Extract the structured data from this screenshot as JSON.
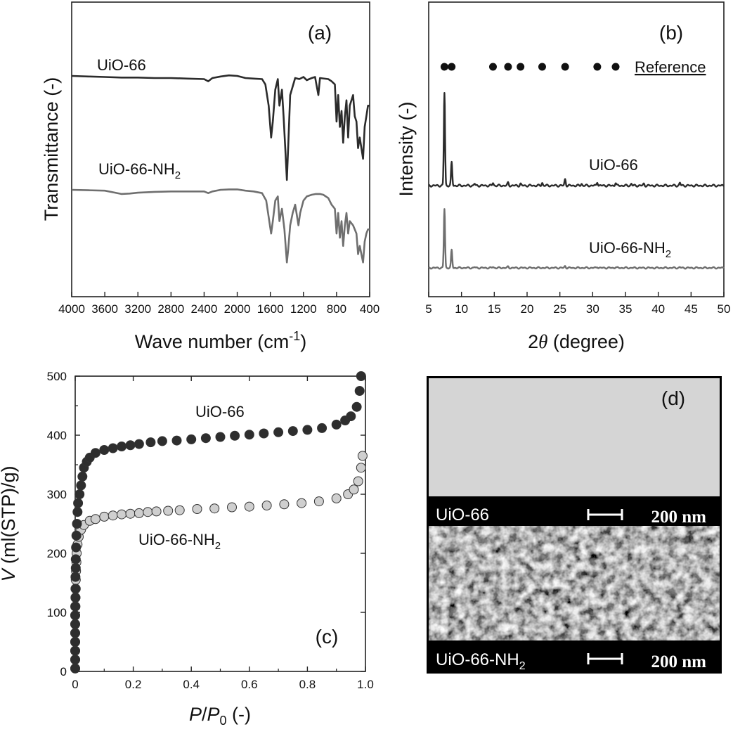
{
  "colors": {
    "dark": "#2b2b2b",
    "gray": "#6f6f6f",
    "light_marker": "#cfcfcf",
    "sem_bg": "#000000"
  },
  "chart_data": [
    {
      "id": "a",
      "type": "line",
      "panel_label": "(a)",
      "xlabel": "Wave number (cm",
      "xlabel_sup": "-1",
      "xlabel_tail": ")",
      "ylabel": "Transmittance (-)",
      "xlim": [
        4000,
        400
      ],
      "xticks": [
        "4000",
        "3600",
        "3200",
        "2800",
        "2400",
        "2000",
        "1600",
        "1200",
        "800",
        "400"
      ],
      "series": [
        {
          "name": "UiO-66",
          "sub": "",
          "color": "#2b2b2b",
          "offset": 0,
          "points": [
            [
              4000,
              0.98
            ],
            [
              3800,
              0.975
            ],
            [
              3600,
              0.97
            ],
            [
              3400,
              0.965
            ],
            [
              3200,
              0.965
            ],
            [
              3000,
              0.96
            ],
            [
              2800,
              0.96
            ],
            [
              2600,
              0.955
            ],
            [
              2400,
              0.95
            ],
            [
              2350,
              0.93
            ],
            [
              2300,
              0.96
            ],
            [
              2200,
              0.975
            ],
            [
              2100,
              0.985
            ],
            [
              2000,
              0.98
            ],
            [
              1900,
              0.96
            ],
            [
              1800,
              0.955
            ],
            [
              1700,
              0.95
            ],
            [
              1660,
              0.9
            ],
            [
              1620,
              0.7
            ],
            [
              1590,
              0.4
            ],
            [
              1570,
              0.55
            ],
            [
              1540,
              0.85
            ],
            [
              1510,
              0.95
            ],
            [
              1490,
              0.7
            ],
            [
              1460,
              0.85
            ],
            [
              1440,
              0.6
            ],
            [
              1420,
              0.3
            ],
            [
              1400,
              0.0
            ],
            [
              1385,
              0.3
            ],
            [
              1360,
              0.8
            ],
            [
              1300,
              0.96
            ],
            [
              1250,
              0.95
            ],
            [
              1200,
              0.97
            ],
            [
              1160,
              0.94
            ],
            [
              1100,
              0.96
            ],
            [
              1060,
              0.97
            ],
            [
              1020,
              0.8
            ],
            [
              1000,
              0.96
            ],
            [
              900,
              0.95
            ],
            [
              860,
              0.93
            ],
            [
              820,
              0.9
            ],
            [
              800,
              0.55
            ],
            [
              780,
              0.8
            ],
            [
              760,
              0.5
            ],
            [
              740,
              0.65
            ],
            [
              720,
              0.35
            ],
            [
              700,
              0.6
            ],
            [
              680,
              0.75
            ],
            [
              660,
              0.4
            ],
            [
              640,
              0.7
            ],
            [
              600,
              0.8
            ],
            [
              580,
              0.6
            ],
            [
              560,
              0.55
            ],
            [
              540,
              0.3
            ],
            [
              520,
              0.4
            ],
            [
              480,
              0.2
            ],
            [
              460,
              0.5
            ],
            [
              440,
              0.6
            ],
            [
              420,
              0.7
            ],
            [
              400,
              0.7
            ]
          ]
        },
        {
          "name": "UiO-66-NH",
          "sub": "2",
          "color": "#6f6f6f",
          "offset": 1,
          "points": [
            [
              4000,
              0.98
            ],
            [
              3800,
              0.975
            ],
            [
              3600,
              0.97
            ],
            [
              3500,
              0.95
            ],
            [
              3400,
              0.93
            ],
            [
              3300,
              0.935
            ],
            [
              3200,
              0.945
            ],
            [
              3000,
              0.955
            ],
            [
              2800,
              0.96
            ],
            [
              2600,
              0.96
            ],
            [
              2400,
              0.96
            ],
            [
              2350,
              0.94
            ],
            [
              2300,
              0.96
            ],
            [
              2200,
              0.98
            ],
            [
              2100,
              0.985
            ],
            [
              2000,
              0.985
            ],
            [
              1900,
              0.97
            ],
            [
              1800,
              0.96
            ],
            [
              1700,
              0.94
            ],
            [
              1650,
              0.85
            ],
            [
              1620,
              0.65
            ],
            [
              1590,
              0.45
            ],
            [
              1570,
              0.6
            ],
            [
              1540,
              0.85
            ],
            [
              1510,
              0.9
            ],
            [
              1490,
              0.6
            ],
            [
              1460,
              0.75
            ],
            [
              1430,
              0.5
            ],
            [
              1400,
              0.1
            ],
            [
              1385,
              0.25
            ],
            [
              1360,
              0.55
            ],
            [
              1330,
              0.7
            ],
            [
              1300,
              0.8
            ],
            [
              1260,
              0.55
            ],
            [
              1240,
              0.7
            ],
            [
              1200,
              0.85
            ],
            [
              1160,
              0.9
            ],
            [
              1100,
              0.92
            ],
            [
              1050,
              0.93
            ],
            [
              1000,
              0.93
            ],
            [
              960,
              0.92
            ],
            [
              900,
              0.88
            ],
            [
              860,
              0.8
            ],
            [
              820,
              0.75
            ],
            [
              800,
              0.45
            ],
            [
              780,
              0.7
            ],
            [
              760,
              0.4
            ],
            [
              740,
              0.6
            ],
            [
              720,
              0.3
            ],
            [
              700,
              0.55
            ],
            [
              680,
              0.7
            ],
            [
              660,
              0.45
            ],
            [
              640,
              0.6
            ],
            [
              600,
              0.55
            ],
            [
              580,
              0.5
            ],
            [
              560,
              0.45
            ],
            [
              540,
              0.2
            ],
            [
              520,
              0.3
            ],
            [
              480,
              0.1
            ],
            [
              460,
              0.35
            ],
            [
              440,
              0.45
            ],
            [
              420,
              0.5
            ],
            [
              400,
              0.5
            ]
          ]
        }
      ]
    },
    {
      "id": "b",
      "type": "line",
      "panel_label": "(b)",
      "xlabel_pre": "2",
      "xlabel_theta": "θ",
      "xlabel_post": " (degree)",
      "ylabel": "Intensity (-)",
      "xlim": [
        5,
        50
      ],
      "xticks": [
        "5",
        "10",
        "15",
        "20",
        "25",
        "30",
        "35",
        "40",
        "45",
        "50"
      ],
      "reference_label": "Reference",
      "reference_positions": [
        7.4,
        8.5,
        14.8,
        17.1,
        19.0,
        22.3,
        25.8,
        30.7,
        33.5
      ],
      "series": [
        {
          "name": "UiO-66",
          "sub": "",
          "color": "#2b2b2b",
          "offset": 0,
          "peaks": [
            [
              7.4,
              1.0
            ],
            [
              8.5,
              0.25
            ],
            [
              12.0,
              0.02
            ],
            [
              14.8,
              0.03
            ],
            [
              17.1,
              0.03
            ],
            [
              19.0,
              0.02
            ],
            [
              22.3,
              0.03
            ],
            [
              25.8,
              0.07
            ],
            [
              28.3,
              0.02
            ],
            [
              30.7,
              0.04
            ],
            [
              33.5,
              0.03
            ],
            [
              35.9,
              0.02
            ],
            [
              37.8,
              0.02
            ],
            [
              43.3,
              0.03
            ]
          ]
        },
        {
          "name": "UiO-66-NH",
          "sub": "2",
          "color": "#6f6f6f",
          "offset": 1,
          "peaks": [
            [
              7.4,
              0.83
            ],
            [
              8.5,
              0.25
            ],
            [
              12.0,
              0.01
            ],
            [
              14.8,
              0.015
            ],
            [
              17.1,
              0.015
            ],
            [
              25.8,
              0.025
            ],
            [
              30.7,
              0.015
            ],
            [
              33.5,
              0.01
            ],
            [
              43.3,
              0.01
            ]
          ]
        }
      ]
    },
    {
      "id": "c",
      "type": "scatter",
      "panel_label": "(c)",
      "xlabel_p": "P",
      "xlabel_slash": "/",
      "xlabel_p0": "P",
      "xlabel_sub0": "0",
      "xlabel_tail": " (-)",
      "ylabel_v": "V",
      "ylabel_rest": " (ml(STP)/g)",
      "xlim": [
        0,
        1.0
      ],
      "ylim": [
        0,
        500
      ],
      "xticks": [
        "0",
        "0.2",
        "0.4",
        "0.6",
        "0.8",
        "1.0"
      ],
      "yticks": [
        "0",
        "100",
        "200",
        "300",
        "400",
        "500"
      ],
      "series": [
        {
          "name": "UiO-66",
          "sub": "",
          "fill": "#2e2e2e",
          "points": [
            [
              0,
              5
            ],
            [
              0,
              20
            ],
            [
              0,
              35
            ],
            [
              0,
              50
            ],
            [
              0,
              65
            ],
            [
              0,
              80
            ],
            [
              0,
              95
            ],
            [
              0,
              110
            ],
            [
              0.001,
              125
            ],
            [
              0.001,
              140
            ],
            [
              0.001,
              160
            ],
            [
              0.002,
              175
            ],
            [
              0.002,
              190
            ],
            [
              0.003,
              210
            ],
            [
              0.004,
              230
            ],
            [
              0.006,
              250
            ],
            [
              0.008,
              270
            ],
            [
              0.01,
              285
            ],
            [
              0.015,
              300
            ],
            [
              0.02,
              315
            ],
            [
              0.025,
              330
            ],
            [
              0.03,
              345
            ],
            [
              0.04,
              355
            ],
            [
              0.05,
              362
            ],
            [
              0.07,
              370
            ],
            [
              0.1,
              375
            ],
            [
              0.13,
              378
            ],
            [
              0.16,
              381
            ],
            [
              0.19,
              383
            ],
            [
              0.22,
              385
            ],
            [
              0.26,
              388
            ],
            [
              0.3,
              390
            ],
            [
              0.35,
              391
            ],
            [
              0.4,
              393
            ],
            [
              0.45,
              395
            ],
            [
              0.5,
              397
            ],
            [
              0.55,
              399
            ],
            [
              0.6,
              401
            ],
            [
              0.65,
              403
            ],
            [
              0.7,
              405
            ],
            [
              0.75,
              407
            ],
            [
              0.8,
              409
            ],
            [
              0.85,
              412
            ],
            [
              0.9,
              418
            ],
            [
              0.93,
              425
            ],
            [
              0.95,
              432
            ],
            [
              0.97,
              448
            ],
            [
              0.98,
              475
            ],
            [
              0.985,
              500
            ]
          ]
        },
        {
          "name": "UiO-66-NH",
          "sub": "2",
          "fill": "#cfcfcf",
          "points": [
            [
              0,
              5
            ],
            [
              0,
              20
            ],
            [
              0,
              35
            ],
            [
              0,
              50
            ],
            [
              0,
              65
            ],
            [
              0,
              80
            ],
            [
              0,
              95
            ],
            [
              0.001,
              110
            ],
            [
              0.001,
              125
            ],
            [
              0.002,
              140
            ],
            [
              0.002,
              155
            ],
            [
              0.003,
              170
            ],
            [
              0.004,
              185
            ],
            [
              0.005,
              200
            ],
            [
              0.008,
              215
            ],
            [
              0.012,
              228
            ],
            [
              0.02,
              240
            ],
            [
              0.03,
              248
            ],
            [
              0.05,
              255
            ],
            [
              0.07,
              258
            ],
            [
              0.1,
              262
            ],
            [
              0.13,
              264
            ],
            [
              0.16,
              266
            ],
            [
              0.19,
              267
            ],
            [
              0.22,
              268
            ],
            [
              0.25,
              270
            ],
            [
              0.28,
              271
            ],
            [
              0.32,
              272
            ],
            [
              0.36,
              273
            ],
            [
              0.42,
              275
            ],
            [
              0.48,
              276
            ],
            [
              0.54,
              278
            ],
            [
              0.6,
              279
            ],
            [
              0.66,
              281
            ],
            [
              0.72,
              283
            ],
            [
              0.78,
              285
            ],
            [
              0.84,
              288
            ],
            [
              0.9,
              293
            ],
            [
              0.94,
              300
            ],
            [
              0.96,
              308
            ],
            [
              0.975,
              322
            ],
            [
              0.985,
              345
            ],
            [
              0.99,
              365
            ]
          ]
        }
      ]
    }
  ],
  "panel_d": {
    "panel_label": "(d)",
    "images": [
      {
        "label": "UiO-66",
        "sub": "",
        "scale": "200 nm"
      },
      {
        "label": "UiO-66-NH",
        "sub": "2",
        "scale": "200 nm"
      }
    ]
  }
}
